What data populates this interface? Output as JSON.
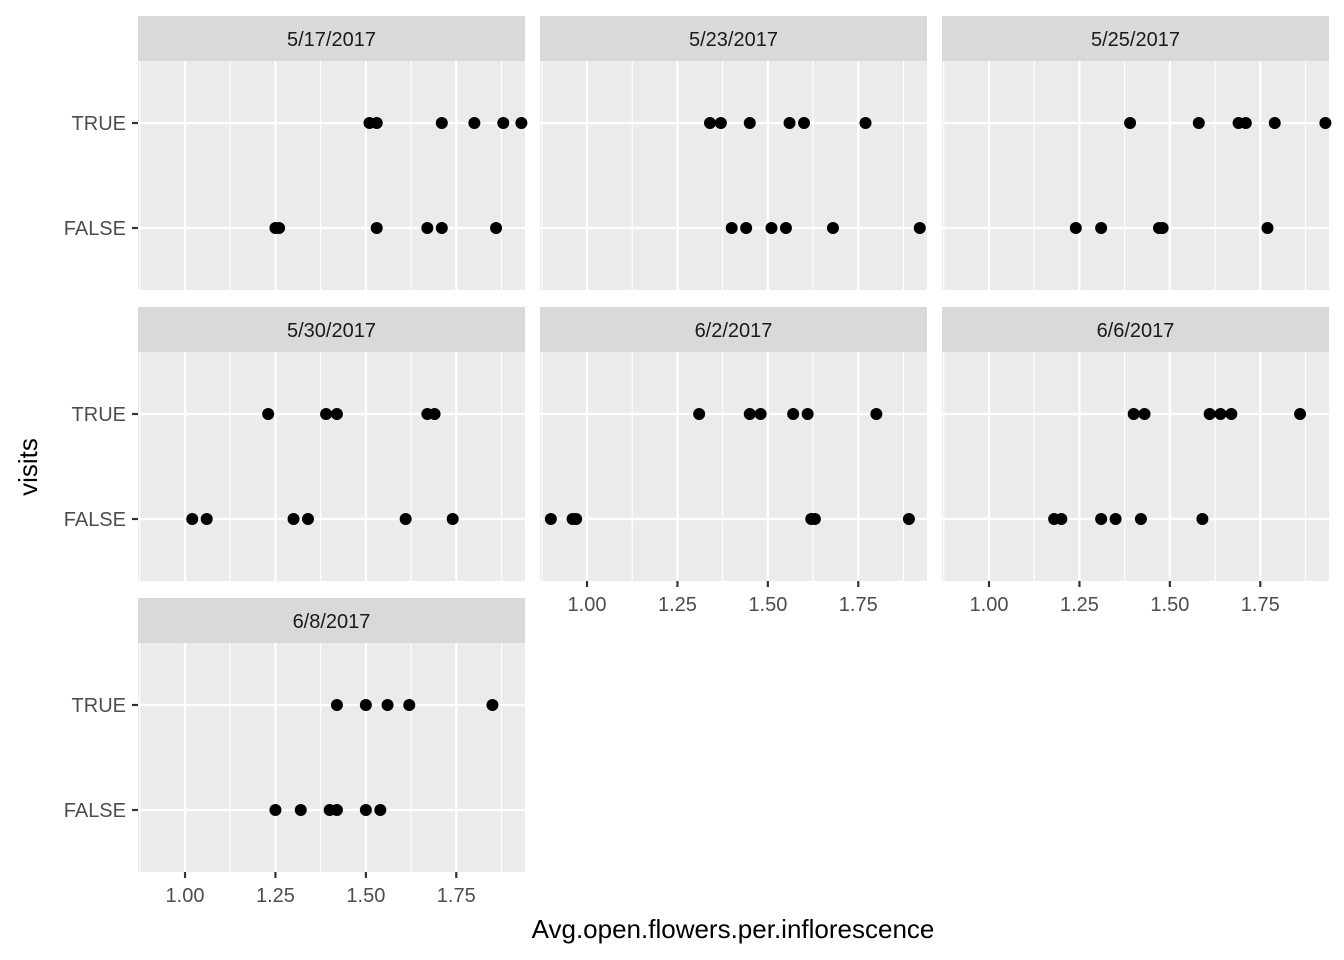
{
  "chart_data": {
    "type": "scatter",
    "xlabel": "Avg.open.flowers.per.inflorescence",
    "ylabel": "visits",
    "xlim": [
      0.87,
      1.94
    ],
    "x_ticks": [
      1.0,
      1.25,
      1.5,
      1.75
    ],
    "x_tick_labels": [
      "1.00",
      "1.25",
      "1.50",
      "1.75"
    ],
    "y_categories": [
      "FALSE",
      "TRUE"
    ],
    "grid": true,
    "facets": [
      {
        "label": "5/17/2017",
        "points": [
          {
            "x": 1.51,
            "visits": "TRUE"
          },
          {
            "x": 1.53,
            "visits": "TRUE"
          },
          {
            "x": 1.71,
            "visits": "TRUE"
          },
          {
            "x": 1.8,
            "visits": "TRUE"
          },
          {
            "x": 1.88,
            "visits": "TRUE"
          },
          {
            "x": 1.93,
            "visits": "TRUE"
          },
          {
            "x": 1.25,
            "visits": "FALSE"
          },
          {
            "x": 1.26,
            "visits": "FALSE"
          },
          {
            "x": 1.53,
            "visits": "FALSE"
          },
          {
            "x": 1.67,
            "visits": "FALSE"
          },
          {
            "x": 1.71,
            "visits": "FALSE"
          },
          {
            "x": 1.86,
            "visits": "FALSE"
          }
        ]
      },
      {
        "label": "5/23/2017",
        "points": [
          {
            "x": 1.34,
            "visits": "TRUE"
          },
          {
            "x": 1.37,
            "visits": "TRUE"
          },
          {
            "x": 1.45,
            "visits": "TRUE"
          },
          {
            "x": 1.56,
            "visits": "TRUE"
          },
          {
            "x": 1.6,
            "visits": "TRUE"
          },
          {
            "x": 1.77,
            "visits": "TRUE"
          },
          {
            "x": 1.4,
            "visits": "FALSE"
          },
          {
            "x": 1.44,
            "visits": "FALSE"
          },
          {
            "x": 1.51,
            "visits": "FALSE"
          },
          {
            "x": 1.55,
            "visits": "FALSE"
          },
          {
            "x": 1.68,
            "visits": "FALSE"
          },
          {
            "x": 1.92,
            "visits": "FALSE"
          }
        ]
      },
      {
        "label": "5/25/2017",
        "points": [
          {
            "x": 1.39,
            "visits": "TRUE"
          },
          {
            "x": 1.58,
            "visits": "TRUE"
          },
          {
            "x": 1.69,
            "visits": "TRUE"
          },
          {
            "x": 1.71,
            "visits": "TRUE"
          },
          {
            "x": 1.79,
            "visits": "TRUE"
          },
          {
            "x": 1.93,
            "visits": "TRUE"
          },
          {
            "x": 1.24,
            "visits": "FALSE"
          },
          {
            "x": 1.31,
            "visits": "FALSE"
          },
          {
            "x": 1.47,
            "visits": "FALSE"
          },
          {
            "x": 1.48,
            "visits": "FALSE"
          },
          {
            "x": 1.77,
            "visits": "FALSE"
          }
        ]
      },
      {
        "label": "5/30/2017",
        "points": [
          {
            "x": 1.23,
            "visits": "TRUE"
          },
          {
            "x": 1.39,
            "visits": "TRUE"
          },
          {
            "x": 1.42,
            "visits": "TRUE"
          },
          {
            "x": 1.67,
            "visits": "TRUE"
          },
          {
            "x": 1.69,
            "visits": "TRUE"
          },
          {
            "x": 1.02,
            "visits": "FALSE"
          },
          {
            "x": 1.06,
            "visits": "FALSE"
          },
          {
            "x": 1.3,
            "visits": "FALSE"
          },
          {
            "x": 1.34,
            "visits": "FALSE"
          },
          {
            "x": 1.61,
            "visits": "FALSE"
          },
          {
            "x": 1.74,
            "visits": "FALSE"
          }
        ]
      },
      {
        "label": "6/2/2017",
        "points": [
          {
            "x": 1.31,
            "visits": "TRUE"
          },
          {
            "x": 1.45,
            "visits": "TRUE"
          },
          {
            "x": 1.48,
            "visits": "TRUE"
          },
          {
            "x": 1.57,
            "visits": "TRUE"
          },
          {
            "x": 1.61,
            "visits": "TRUE"
          },
          {
            "x": 1.8,
            "visits": "TRUE"
          },
          {
            "x": 0.9,
            "visits": "FALSE"
          },
          {
            "x": 0.96,
            "visits": "FALSE"
          },
          {
            "x": 0.97,
            "visits": "FALSE"
          },
          {
            "x": 1.62,
            "visits": "FALSE"
          },
          {
            "x": 1.63,
            "visits": "FALSE"
          },
          {
            "x": 1.89,
            "visits": "FALSE"
          }
        ]
      },
      {
        "label": "6/6/2017",
        "points": [
          {
            "x": 1.4,
            "visits": "TRUE"
          },
          {
            "x": 1.43,
            "visits": "TRUE"
          },
          {
            "x": 1.61,
            "visits": "TRUE"
          },
          {
            "x": 1.64,
            "visits": "TRUE"
          },
          {
            "x": 1.67,
            "visits": "TRUE"
          },
          {
            "x": 1.86,
            "visits": "TRUE"
          },
          {
            "x": 1.18,
            "visits": "FALSE"
          },
          {
            "x": 1.2,
            "visits": "FALSE"
          },
          {
            "x": 1.31,
            "visits": "FALSE"
          },
          {
            "x": 1.35,
            "visits": "FALSE"
          },
          {
            "x": 1.42,
            "visits": "FALSE"
          },
          {
            "x": 1.59,
            "visits": "FALSE"
          }
        ]
      },
      {
        "label": "6/8/2017",
        "points": [
          {
            "x": 1.42,
            "visits": "TRUE"
          },
          {
            "x": 1.5,
            "visits": "TRUE"
          },
          {
            "x": 1.56,
            "visits": "TRUE"
          },
          {
            "x": 1.62,
            "visits": "TRUE"
          },
          {
            "x": 1.85,
            "visits": "TRUE"
          },
          {
            "x": 1.25,
            "visits": "FALSE"
          },
          {
            "x": 1.32,
            "visits": "FALSE"
          },
          {
            "x": 1.4,
            "visits": "FALSE"
          },
          {
            "x": 1.42,
            "visits": "FALSE"
          },
          {
            "x": 1.5,
            "visits": "FALSE"
          },
          {
            "x": 1.54,
            "visits": "FALSE"
          }
        ]
      }
    ]
  }
}
